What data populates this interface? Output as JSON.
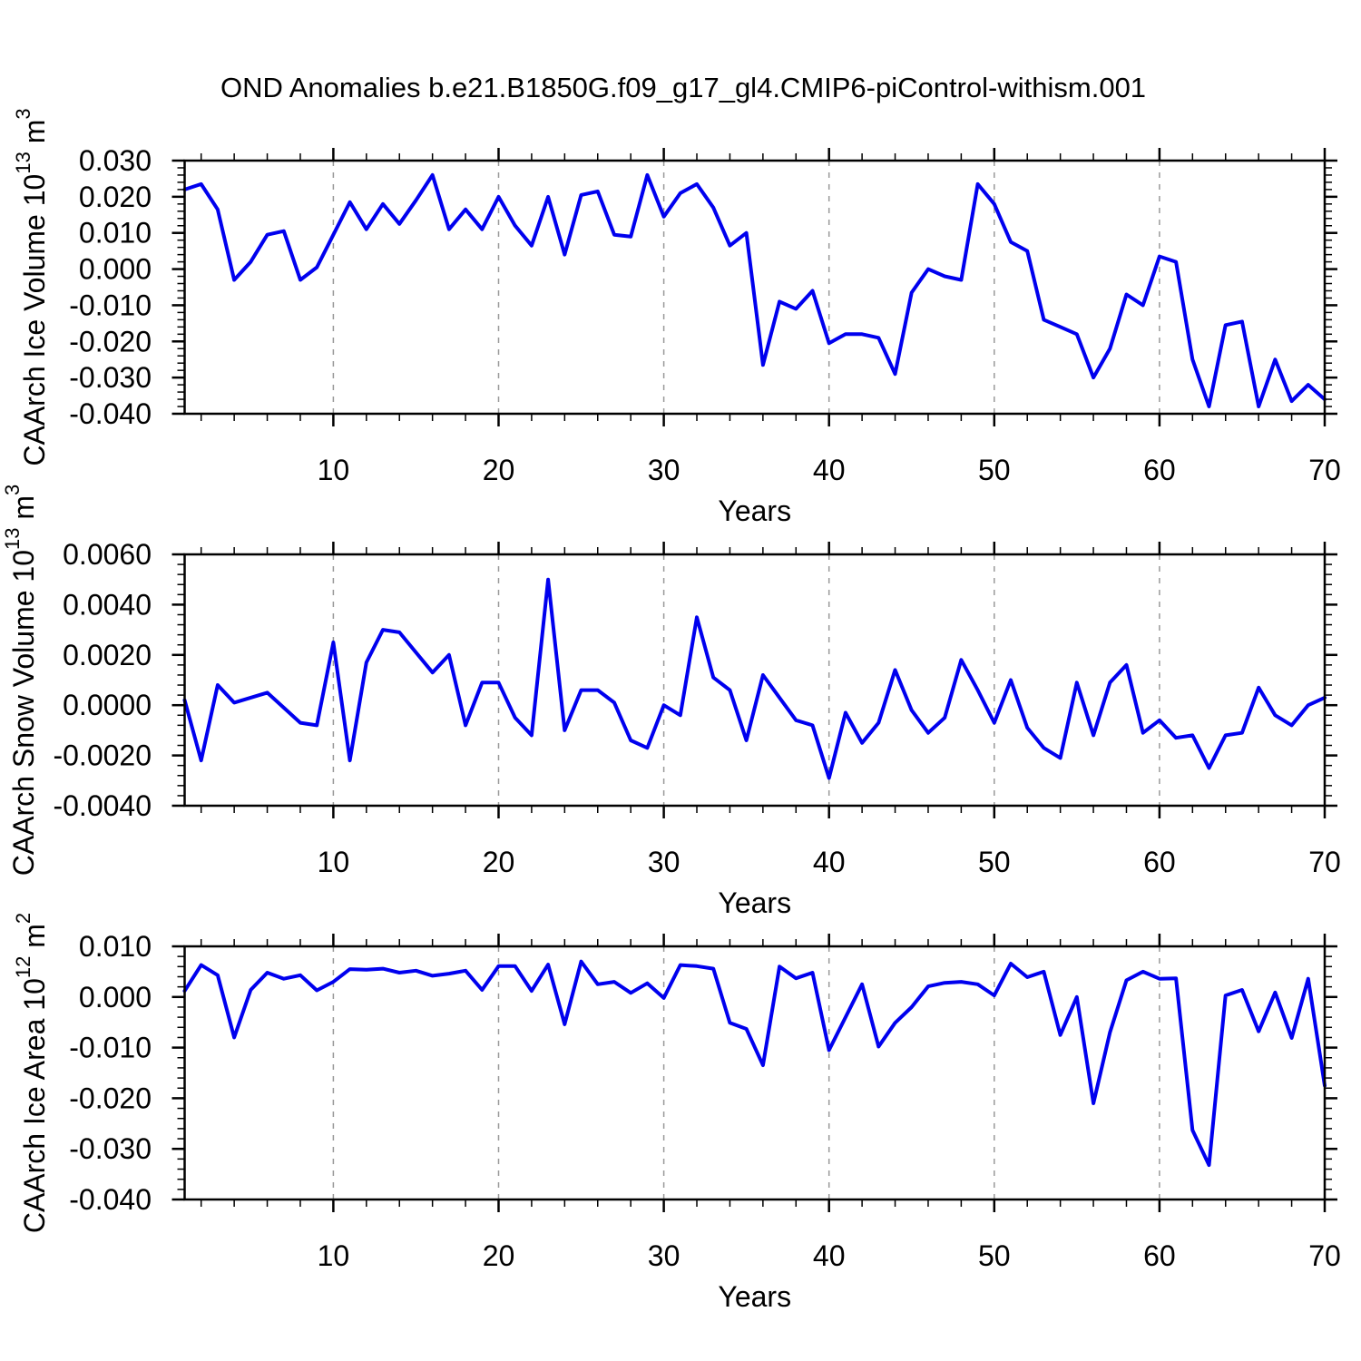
{
  "chart_data": {
    "type": "line",
    "title": "OND Anomalies b.e21.B1850G.f09_g17_gl4.CMIP6-piControl-withism.001",
    "xlabel": "Years",
    "x_range": [
      1,
      70
    ],
    "xtick_labels": [
      "10",
      "20",
      "30",
      "40",
      "50",
      "60",
      "70"
    ],
    "xticks": [
      10,
      20,
      30,
      40,
      50,
      60,
      70
    ],
    "xminor_step": 2,
    "grid_x": [
      10,
      20,
      30,
      40,
      50,
      60
    ],
    "legend": "none",
    "grid": "vertical-dashed-at-decades",
    "panels": [
      {
        "id": "ice-volume",
        "ylabel_plain": "CAArch Ice Volume 10^13 m^3",
        "ylabel_parts": {
          "pre": "CAArch Ice Volume 10",
          "sup1": "13",
          "mid": " m",
          "sup2": "3"
        },
        "ylim": [
          -0.04,
          0.03
        ],
        "ytick_step": 0.01,
        "yminor_step": 0.002,
        "ytick_labels": [
          "0.030",
          "0.020",
          "0.010",
          "0.000",
          "-0.010",
          "-0.020",
          "-0.030",
          "-0.040"
        ],
        "values": [
          0.022,
          0.0235,
          0.0165,
          -0.003,
          0.002,
          0.0095,
          0.0105,
          -0.003,
          0.0005,
          0.0095,
          0.0185,
          0.011,
          0.018,
          0.0125,
          0.019,
          0.026,
          0.011,
          0.0165,
          0.011,
          0.02,
          0.012,
          0.0065,
          0.02,
          0.004,
          0.0205,
          0.0215,
          0.0095,
          0.009,
          0.026,
          0.0145,
          0.021,
          0.0235,
          0.017,
          0.0065,
          0.01,
          -0.0265,
          -0.009,
          -0.011,
          -0.006,
          -0.0205,
          -0.018,
          -0.018,
          -0.019,
          -0.029,
          -0.0065,
          0.0,
          -0.002,
          -0.003,
          0.0235,
          0.018,
          0.0075,
          0.005,
          -0.014,
          -0.016,
          -0.018,
          -0.03,
          -0.022,
          -0.007,
          -0.01,
          0.0035,
          0.002,
          -0.025,
          -0.038,
          -0.0155,
          -0.0145,
          -0.038,
          -0.025,
          -0.0365,
          -0.032,
          -0.036
        ]
      },
      {
        "id": "snow-volume",
        "ylabel_plain": "CAArch Snow Volume 10^13 m^3",
        "ylabel_parts": {
          "pre": "CAArch Snow Volume 10",
          "sup1": "13",
          "mid": " m",
          "sup2": "3"
        },
        "ylim": [
          -0.004,
          0.006
        ],
        "ytick_step": 0.002,
        "yminor_step": 0.0004,
        "ytick_labels": [
          "0.0060",
          "0.0040",
          "0.0020",
          "0.0000",
          "-0.0020",
          "-0.0040"
        ],
        "values": [
          0.0002,
          -0.0022,
          0.0008,
          0.0001,
          0.0003,
          0.0005,
          -0.0001,
          -0.0007,
          -0.0008,
          0.0025,
          -0.0022,
          0.0017,
          0.003,
          0.0029,
          0.0021,
          0.0013,
          0.002,
          -0.0008,
          0.0009,
          0.0009,
          -0.0005,
          -0.0012,
          0.005,
          -0.001,
          0.0006,
          0.0006,
          0.0001,
          -0.0014,
          -0.0017,
          0.0,
          -0.0004,
          0.0035,
          0.0011,
          0.0006,
          -0.0014,
          0.0012,
          0.0003,
          -0.0006,
          -0.0008,
          -0.0029,
          -0.0003,
          -0.0015,
          -0.0007,
          0.0014,
          -0.0002,
          -0.0011,
          -0.0005,
          0.0018,
          0.0006,
          -0.0007,
          0.001,
          -0.0009,
          -0.0017,
          -0.0021,
          0.0009,
          -0.0012,
          0.0009,
          0.0016,
          -0.0011,
          -0.0006,
          -0.0013,
          -0.0012,
          -0.0025,
          -0.0012,
          -0.0011,
          0.0007,
          -0.0004,
          -0.0008,
          0.0,
          0.0003
        ]
      },
      {
        "id": "ice-area",
        "ylabel_plain": "CAArch Ice Area 10^12 m^2",
        "ylabel_parts": {
          "pre": "CAArch Ice Area 10",
          "sup1": "12",
          "mid": " m",
          "sup2": "2"
        },
        "ylim": [
          -0.04,
          0.01
        ],
        "ytick_step": 0.01,
        "yminor_step": 0.002,
        "ytick_labels": [
          "0.010",
          "0.000",
          "-0.010",
          "-0.020",
          "-0.030",
          "-0.040"
        ],
        "values": [
          0.0012,
          0.0063,
          0.0043,
          -0.008,
          0.0014,
          0.0048,
          0.0036,
          0.0043,
          0.0013,
          0.003,
          0.0055,
          0.0054,
          0.0056,
          0.0048,
          0.0052,
          0.0042,
          0.0046,
          0.0052,
          0.0014,
          0.0061,
          0.0061,
          0.0012,
          0.0064,
          -0.0054,
          0.007,
          0.0025,
          0.003,
          0.0008,
          0.0027,
          -0.0002,
          0.0063,
          0.0061,
          0.0056,
          -0.0051,
          -0.0063,
          -0.0135,
          0.006,
          0.0037,
          0.0048,
          -0.0105,
          -0.004,
          0.0025,
          -0.0098,
          -0.0051,
          -0.002,
          0.0021,
          0.0028,
          0.003,
          0.0025,
          0.0003,
          0.0066,
          0.0039,
          0.005,
          -0.0075,
          0.0,
          -0.021,
          -0.007,
          0.0033,
          0.005,
          0.0036,
          0.0037,
          -0.0263,
          -0.0332,
          0.0003,
          0.0014,
          -0.0068,
          0.0009,
          -0.0081,
          0.0036,
          -0.0175
        ]
      }
    ],
    "colors": {
      "line": "#0000EE",
      "grid": "#999999",
      "axis": "#000000",
      "background": "#FFFFFF"
    }
  }
}
